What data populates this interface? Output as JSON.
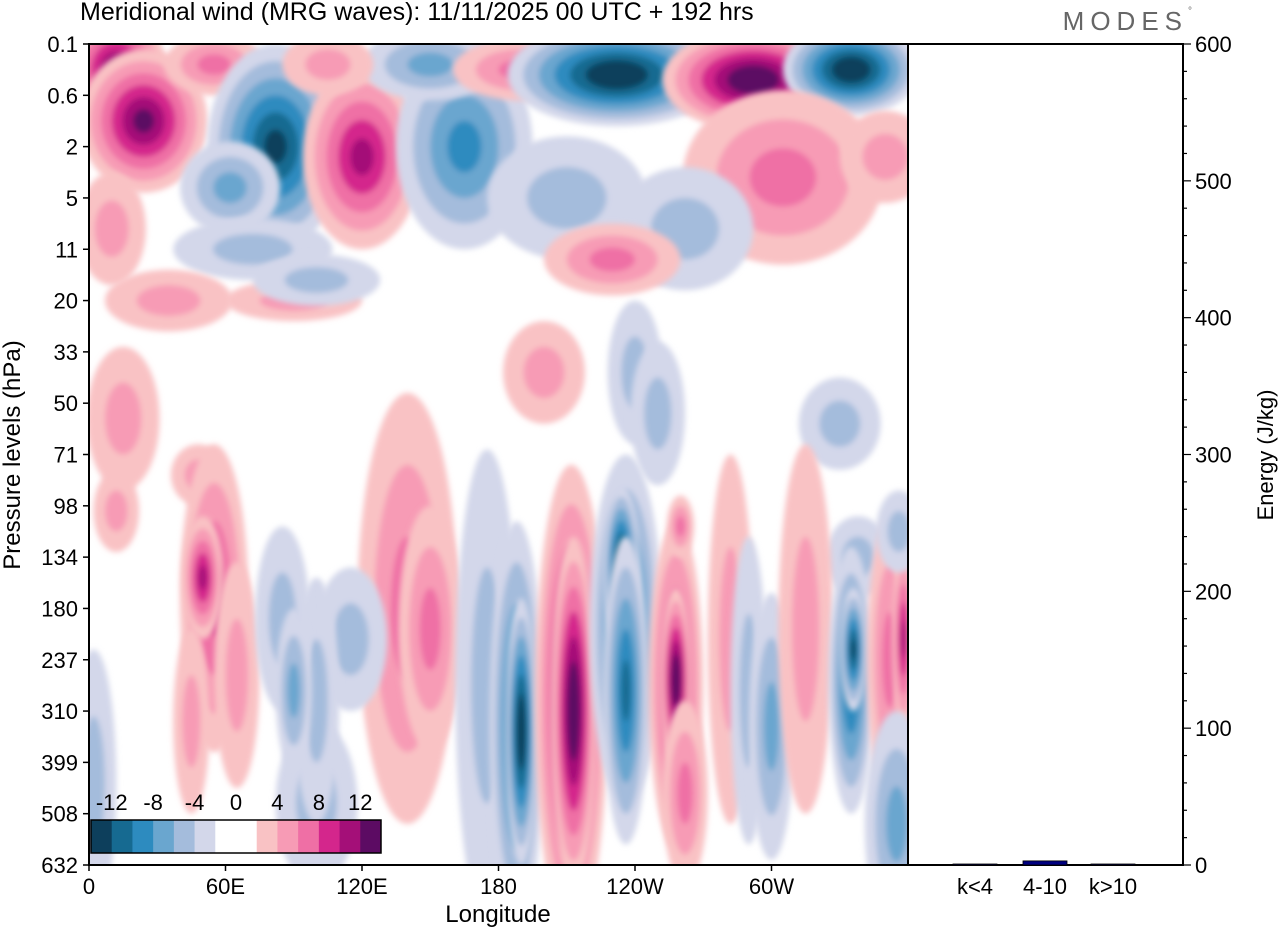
{
  "header": {
    "title": "Meridional wind (MRG waves):  11/11/2025  00 UTC  + 192 hrs",
    "brand": "MODES",
    "brand_mark": "°"
  },
  "chart_data": [
    {
      "type": "heatmap",
      "title": "Meridional wind (MRG waves):  11/11/2025  00 UTC  + 192 hrs",
      "xlabel": "Longitude",
      "ylabel": "Pressure levels (hPa)",
      "x_tick_labels": [
        "0",
        "60E",
        "120E",
        "180",
        "120W",
        "60W"
      ],
      "x_range_deg": [
        0,
        360
      ],
      "y_tick_labels": [
        "0.1",
        "0.6",
        "2",
        "5",
        "11",
        "20",
        "33",
        "50",
        "71",
        "98",
        "134",
        "180",
        "237",
        "310",
        "399",
        "508",
        "632"
      ],
      "colorbar": {
        "levels": [
          -12,
          -8,
          -4,
          0,
          4,
          8,
          12
        ],
        "labels": [
          "-12",
          "-8",
          "-4",
          "0",
          "4",
          "8",
          "12"
        ],
        "colors": [
          "#0d3f5c",
          "#166a91",
          "#2d8bbf",
          "#6aa6cf",
          "#a4bcdc",
          "#d3d7ea",
          "#ffffff",
          "#ffffff",
          "#f9c2c4",
          "#f79bb5",
          "#ef6fa5",
          "#d4268c",
          "#a40f78",
          "#5c0b63"
        ]
      },
      "features": [
        {
          "lon": 10,
          "level_index": 0.3,
          "value": 10
        },
        {
          "lon": 20,
          "level_index": 1.4,
          "value": 12
        },
        {
          "lon": 50,
          "level_index": 0.5,
          "value": 6
        },
        {
          "lon": 80,
          "level_index": 2.0,
          "value": -12
        },
        {
          "lon": 120,
          "level_index": 2.3,
          "value": 10
        },
        {
          "lon": 164,
          "level_index": 2.1,
          "value": -8
        },
        {
          "lon": 230,
          "level_index": 0.6,
          "value": -12
        },
        {
          "lon": 290,
          "level_index": 0.7,
          "value": 12
        },
        {
          "lon": 335,
          "level_index": 0.5,
          "value": -12
        },
        {
          "lon": 185,
          "level_index": 13.2,
          "value": -10
        },
        {
          "lon": 212,
          "level_index": 12.8,
          "value": 12
        },
        {
          "lon": 235,
          "level_index": 11.6,
          "value": -12
        },
        {
          "lon": 258,
          "level_index": 12.5,
          "value": 9
        },
        {
          "lon": 335,
          "level_index": 12.4,
          "value": -9
        },
        {
          "lon": 50,
          "level_index": 10.8,
          "value": 7
        },
        {
          "lon": 140,
          "level_index": 11.4,
          "value": 4
        }
      ]
    },
    {
      "type": "bar",
      "categories": [
        "k<4",
        "4-10",
        "k>10"
      ],
      "values": [
        0,
        3,
        0
      ],
      "ylabel": "Energy (J/kg)",
      "ylim": [
        0,
        600
      ],
      "y_tick_labels": [
        "0",
        "100",
        "200",
        "300",
        "400",
        "500",
        "600"
      ],
      "bar_color": "#000080"
    }
  ]
}
